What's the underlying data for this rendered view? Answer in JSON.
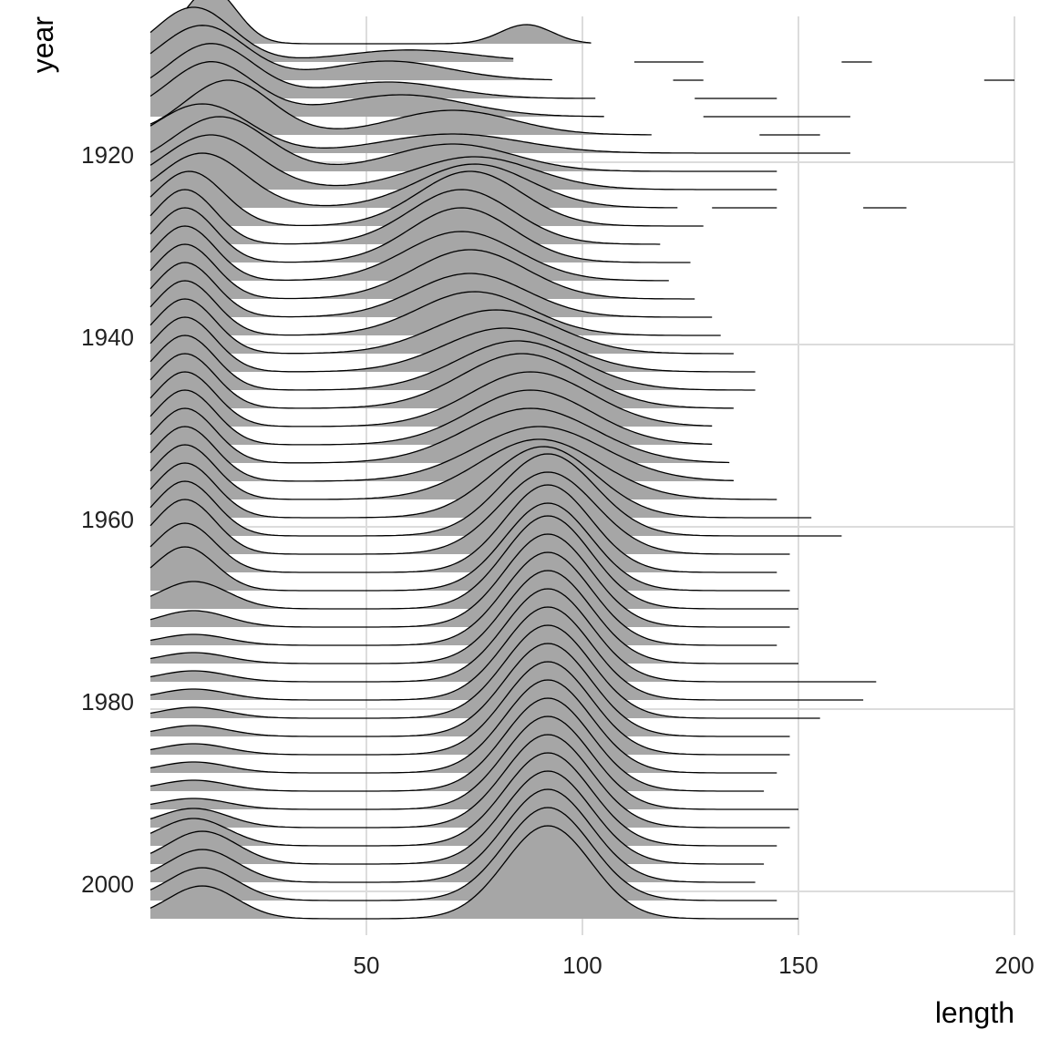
{
  "chart_data": {
    "type": "ridgeline",
    "title": "",
    "xlabel": "length",
    "ylabel": "year",
    "xlim": [
      0,
      200
    ],
    "ylim": [
      1904,
      2005
    ],
    "x_ticks": [
      50,
      100,
      150,
      200
    ],
    "y_ticks": [
      1920,
      1940,
      1960,
      1980,
      2000
    ],
    "grid": true,
    "fill_color": "#a6a6a6",
    "line_color": "#000000",
    "note": "",
    "series": [
      {
        "year": 1907,
        "comps": [
          [
            14,
            6,
            1.0
          ],
          [
            87,
            6,
            0.35
          ]
        ],
        "segments": [
          [
            0,
            102
          ]
        ]
      },
      {
        "year": 1909,
        "comps": [
          [
            10,
            9,
            1.0
          ],
          [
            60,
            15,
            0.22
          ]
        ],
        "segments": [
          [
            0,
            84
          ],
          [
            112,
            128
          ],
          [
            160,
            167
          ]
        ]
      },
      {
        "year": 1911,
        "comps": [
          [
            12,
            10,
            1.0
          ],
          [
            55,
            14,
            0.35
          ]
        ],
        "segments": [
          [
            0,
            93
          ],
          [
            121,
            128
          ],
          [
            193,
            200
          ]
        ]
      },
      {
        "year": 1913,
        "comps": [
          [
            14,
            10,
            1.0
          ],
          [
            55,
            14,
            0.3
          ]
        ],
        "segments": [
          [
            0,
            103
          ],
          [
            126,
            145
          ]
        ]
      },
      {
        "year": 1915,
        "comps": [
          [
            14,
            10,
            1.0
          ],
          [
            58,
            15,
            0.4
          ]
        ],
        "segments": [
          [
            0,
            105
          ],
          [
            128,
            162
          ]
        ]
      },
      {
        "year": 1917,
        "comps": [
          [
            18,
            10,
            1.0
          ],
          [
            70,
            14,
            0.45
          ]
        ],
        "segments": [
          [
            0,
            116
          ],
          [
            141,
            155
          ]
        ]
      },
      {
        "year": 1919,
        "comps": [
          [
            12,
            11,
            0.9
          ],
          [
            70,
            16,
            0.35
          ]
        ],
        "segments": [
          [
            0,
            162
          ]
        ]
      },
      {
        "year": 1921,
        "comps": [
          [
            16,
            11,
            1.0
          ],
          [
            70,
            14,
            0.5
          ]
        ],
        "segments": [
          [
            0,
            145
          ]
        ]
      },
      {
        "year": 1923,
        "comps": [
          [
            14,
            11,
            1.0
          ],
          [
            75,
            14,
            0.6
          ]
        ],
        "segments": [
          [
            0,
            145
          ]
        ]
      },
      {
        "year": 1925,
        "comps": [
          [
            12,
            10,
            1.0
          ],
          [
            75,
            13,
            0.8
          ]
        ],
        "segments": [
          [
            0,
            122
          ],
          [
            130,
            145
          ],
          [
            165,
            175
          ]
        ]
      },
      {
        "year": 1927,
        "comps": [
          [
            9,
            8,
            1.0
          ],
          [
            74,
            12,
            1.0
          ]
        ],
        "segments": [
          [
            0,
            128
          ]
        ]
      },
      {
        "year": 1929,
        "comps": [
          [
            8,
            7,
            1.0
          ],
          [
            72,
            12,
            1.0
          ]
        ],
        "segments": [
          [
            0,
            118
          ]
        ]
      },
      {
        "year": 1931,
        "comps": [
          [
            8,
            7,
            1.0
          ],
          [
            72,
            12,
            1.0
          ]
        ],
        "segments": [
          [
            0,
            125
          ]
        ]
      },
      {
        "year": 1933,
        "comps": [
          [
            8,
            7,
            1.0
          ],
          [
            72,
            13,
            0.9
          ]
        ],
        "segments": [
          [
            0,
            120
          ]
        ]
      },
      {
        "year": 1935,
        "comps": [
          [
            8,
            7,
            1.0
          ],
          [
            74,
            13,
            0.9
          ]
        ],
        "segments": [
          [
            0,
            126
          ]
        ]
      },
      {
        "year": 1937,
        "comps": [
          [
            8,
            7,
            1.0
          ],
          [
            74,
            13,
            0.8
          ]
        ],
        "segments": [
          [
            0,
            130
          ]
        ]
      },
      {
        "year": 1939,
        "comps": [
          [
            8,
            7,
            1.0
          ],
          [
            75,
            13,
            0.8
          ]
        ],
        "segments": [
          [
            0,
            132
          ]
        ]
      },
      {
        "year": 1941,
        "comps": [
          [
            8,
            7,
            1.0
          ],
          [
            80,
            14,
            0.8
          ]
        ],
        "segments": [
          [
            0,
            135
          ]
        ]
      },
      {
        "year": 1943,
        "comps": [
          [
            8,
            7,
            1.0
          ],
          [
            82,
            14,
            0.8
          ]
        ],
        "segments": [
          [
            0,
            140
          ]
        ]
      },
      {
        "year": 1945,
        "comps": [
          [
            8,
            7,
            1.0
          ],
          [
            85,
            14,
            0.9
          ]
        ],
        "segments": [
          [
            0,
            140
          ]
        ]
      },
      {
        "year": 1947,
        "comps": [
          [
            8,
            7,
            1.0
          ],
          [
            86,
            14,
            1.0
          ]
        ],
        "segments": [
          [
            0,
            135
          ]
        ]
      },
      {
        "year": 1949,
        "comps": [
          [
            8,
            7,
            1.0
          ],
          [
            88,
            14,
            1.0
          ]
        ],
        "segments": [
          [
            0,
            130
          ]
        ]
      },
      {
        "year": 1951,
        "comps": [
          [
            8,
            7,
            1.0
          ],
          [
            88,
            14,
            1.0
          ]
        ],
        "segments": [
          [
            0,
            130
          ]
        ]
      },
      {
        "year": 1953,
        "comps": [
          [
            8,
            7,
            1.0
          ],
          [
            88,
            15,
            1.0
          ]
        ],
        "segments": [
          [
            0,
            134
          ]
        ]
      },
      {
        "year": 1955,
        "comps": [
          [
            8,
            7,
            1.0
          ],
          [
            90,
            15,
            1.0
          ]
        ],
        "segments": [
          [
            0,
            135
          ]
        ]
      },
      {
        "year": 1957,
        "comps": [
          [
            8,
            7,
            1.0
          ],
          [
            90,
            14,
            1.1
          ]
        ],
        "segments": [
          [
            0,
            145
          ]
        ]
      },
      {
        "year": 1959,
        "comps": [
          [
            8,
            7,
            1.0
          ],
          [
            91,
            12,
            1.3
          ]
        ],
        "segments": [
          [
            0,
            153
          ]
        ]
      },
      {
        "year": 1961,
        "comps": [
          [
            8,
            7,
            1.0
          ],
          [
            92,
            11,
            1.5
          ]
        ],
        "segments": [
          [
            0,
            160
          ]
        ]
      },
      {
        "year": 1963,
        "comps": [
          [
            8,
            7,
            1.0
          ],
          [
            92,
            11,
            1.5
          ]
        ],
        "segments": [
          [
            0,
            148
          ]
        ]
      },
      {
        "year": 1965,
        "comps": [
          [
            8,
            7,
            0.9
          ],
          [
            92,
            10,
            1.6
          ]
        ],
        "segments": [
          [
            0,
            145
          ]
        ]
      },
      {
        "year": 1967,
        "comps": [
          [
            8,
            7,
            0.8
          ],
          [
            92,
            10,
            1.6
          ]
        ],
        "segments": [
          [
            0,
            148
          ]
        ]
      },
      {
        "year": 1969,
        "comps": [
          [
            10,
            8,
            0.5
          ],
          [
            92,
            10,
            1.7
          ]
        ],
        "segments": [
          [
            0,
            150
          ]
        ]
      },
      {
        "year": 1971,
        "comps": [
          [
            10,
            8,
            0.3
          ],
          [
            92,
            10,
            1.7
          ]
        ],
        "segments": [
          [
            0,
            148
          ]
        ]
      },
      {
        "year": 1973,
        "comps": [
          [
            10,
            8,
            0.2
          ],
          [
            92,
            10,
            1.7
          ]
        ],
        "segments": [
          [
            0,
            145
          ]
        ]
      },
      {
        "year": 1975,
        "comps": [
          [
            10,
            8,
            0.2
          ],
          [
            92,
            10,
            1.7
          ]
        ],
        "segments": [
          [
            0,
            150
          ]
        ]
      },
      {
        "year": 1977,
        "comps": [
          [
            10,
            8,
            0.2
          ],
          [
            92,
            10,
            1.7
          ]
        ],
        "segments": [
          [
            0,
            168
          ]
        ]
      },
      {
        "year": 1979,
        "comps": [
          [
            10,
            8,
            0.2
          ],
          [
            92,
            10,
            1.7
          ]
        ],
        "segments": [
          [
            0,
            165
          ]
        ]
      },
      {
        "year": 1981,
        "comps": [
          [
            10,
            8,
            0.2
          ],
          [
            92,
            10,
            1.7
          ]
        ],
        "segments": [
          [
            0,
            155
          ]
        ]
      },
      {
        "year": 1983,
        "comps": [
          [
            10,
            8,
            0.2
          ],
          [
            92,
            10,
            1.7
          ]
        ],
        "segments": [
          [
            0,
            148
          ]
        ]
      },
      {
        "year": 1985,
        "comps": [
          [
            10,
            8,
            0.2
          ],
          [
            92,
            10,
            1.7
          ]
        ],
        "segments": [
          [
            0,
            148
          ]
        ]
      },
      {
        "year": 1987,
        "comps": [
          [
            10,
            8,
            0.2
          ],
          [
            92,
            10,
            1.7
          ]
        ],
        "segments": [
          [
            0,
            145
          ]
        ]
      },
      {
        "year": 1989,
        "comps": [
          [
            10,
            8,
            0.2
          ],
          [
            92,
            10,
            1.7
          ]
        ],
        "segments": [
          [
            0,
            142
          ]
        ]
      },
      {
        "year": 1991,
        "comps": [
          [
            10,
            8,
            0.2
          ],
          [
            92,
            10,
            1.7
          ]
        ],
        "segments": [
          [
            0,
            150
          ]
        ]
      },
      {
        "year": 1993,
        "comps": [
          [
            10,
            8,
            0.35
          ],
          [
            92,
            10,
            1.7
          ]
        ],
        "segments": [
          [
            0,
            148
          ]
        ]
      },
      {
        "year": 1995,
        "comps": [
          [
            10,
            8,
            0.5
          ],
          [
            92,
            10,
            1.7
          ]
        ],
        "segments": [
          [
            0,
            145
          ]
        ]
      },
      {
        "year": 1997,
        "comps": [
          [
            12,
            8,
            0.6
          ],
          [
            92,
            10,
            1.7
          ]
        ],
        "segments": [
          [
            0,
            142
          ]
        ]
      },
      {
        "year": 1999,
        "comps": [
          [
            12,
            8,
            0.6
          ],
          [
            92,
            10,
            1.7
          ]
        ],
        "segments": [
          [
            0,
            140
          ]
        ]
      },
      {
        "year": 2001,
        "comps": [
          [
            12,
            8,
            0.6
          ],
          [
            92,
            10,
            1.7
          ]
        ],
        "segments": [
          [
            0,
            145
          ]
        ]
      },
      {
        "year": 2003,
        "comps": [
          [
            12,
            8,
            0.6
          ],
          [
            92,
            10,
            1.7
          ]
        ],
        "segments": [
          [
            0,
            150
          ]
        ]
      }
    ]
  }
}
